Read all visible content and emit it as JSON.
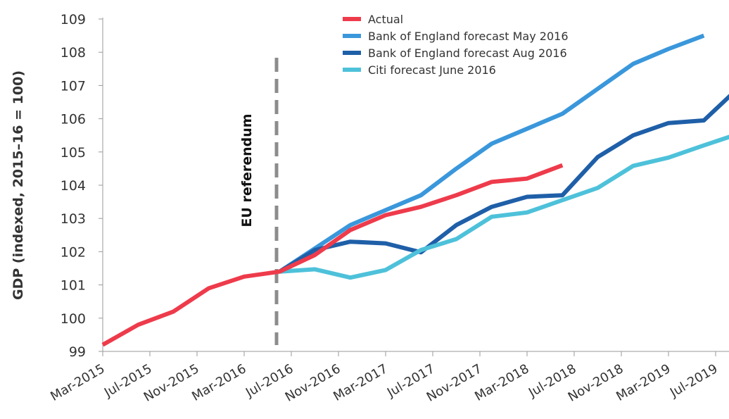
{
  "chart_data": {
    "type": "line",
    "ylabel": "GDP (indexed, 2015–16 = 100)",
    "xlabel": "",
    "ylim": [
      99,
      109
    ],
    "yticks": [
      99,
      100,
      101,
      102,
      103,
      104,
      105,
      106,
      107,
      108,
      109
    ],
    "xticks": [
      "Mar-2015",
      "Jul-2015",
      "Nov-2015",
      "Mar-2016",
      "Jul-2016",
      "Nov-2016",
      "Mar-2017",
      "Jul-2017",
      "Nov-2017",
      "Mar-2018",
      "Jul-2018",
      "Nov-2018",
      "Mar-2019",
      "Jul-2019"
    ],
    "grid": false,
    "legend_position": "top-center",
    "annotation": {
      "label": "EU referendum",
      "at": "Jun-2016",
      "style": "dashed vertical line"
    },
    "series": [
      {
        "name": "Actual",
        "color": "#EE3B4B",
        "points": [
          [
            "2015-03",
            99.2
          ],
          [
            "2015-06",
            99.8
          ],
          [
            "2015-09",
            100.2
          ],
          [
            "2015-12",
            100.9
          ],
          [
            "2016-03",
            101.25
          ],
          [
            "2016-06",
            101.4
          ],
          [
            "2016-09",
            101.9
          ],
          [
            "2016-12",
            102.65
          ],
          [
            "2017-03",
            103.1
          ],
          [
            "2017-06",
            103.35
          ],
          [
            "2017-09",
            103.7
          ],
          [
            "2017-12",
            104.1
          ],
          [
            "2018-03",
            104.2
          ],
          [
            "2018-06",
            104.6
          ]
        ]
      },
      {
        "name": "Bank of England forecast May 2016",
        "color": "#3A97DB",
        "points": [
          [
            "2016-06",
            101.4
          ],
          [
            "2016-09",
            102.1
          ],
          [
            "2016-12",
            102.8
          ],
          [
            "2017-03",
            103.25
          ],
          [
            "2017-06",
            103.7
          ],
          [
            "2017-09",
            104.5
          ],
          [
            "2017-12",
            105.25
          ],
          [
            "2018-03",
            105.7
          ],
          [
            "2018-06",
            106.15
          ],
          [
            "2018-09",
            106.9
          ],
          [
            "2018-12",
            107.65
          ],
          [
            "2019-03",
            108.1
          ],
          [
            "2019-06",
            108.5
          ]
        ]
      },
      {
        "name": "Bank of England forecast Aug 2016",
        "color": "#1F5FA8",
        "points": [
          [
            "2016-06",
            101.4
          ],
          [
            "2016-09",
            102.05
          ],
          [
            "2016-12",
            102.3
          ],
          [
            "2017-03",
            102.25
          ],
          [
            "2017-06",
            101.98
          ],
          [
            "2017-09",
            102.8
          ],
          [
            "2017-12",
            103.35
          ],
          [
            "2018-03",
            103.65
          ],
          [
            "2018-06",
            103.7
          ],
          [
            "2018-09",
            104.85
          ],
          [
            "2018-12",
            105.5
          ],
          [
            "2019-03",
            105.87
          ],
          [
            "2019-06",
            105.95
          ],
          [
            "2019-09",
            106.95
          ]
        ]
      },
      {
        "name": "Citi forecast June 2016",
        "color": "#4EC1DA",
        "points": [
          [
            "2016-06",
            101.4
          ],
          [
            "2016-09",
            101.47
          ],
          [
            "2016-12",
            101.22
          ],
          [
            "2017-03",
            101.45
          ],
          [
            "2017-06",
            102.05
          ],
          [
            "2017-09",
            102.38
          ],
          [
            "2017-12",
            103.05
          ],
          [
            "2018-03",
            103.18
          ],
          [
            "2018-06",
            103.55
          ],
          [
            "2018-09",
            103.92
          ],
          [
            "2018-12",
            104.58
          ],
          [
            "2019-03",
            104.83
          ],
          [
            "2019-06",
            105.2
          ],
          [
            "2019-09",
            105.55
          ]
        ]
      }
    ]
  }
}
